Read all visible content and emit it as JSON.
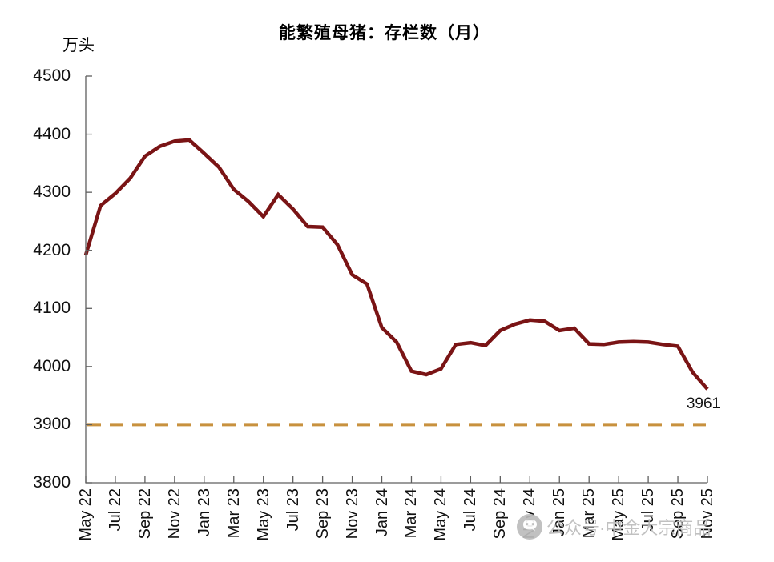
{
  "chart": {
    "title": "能繁殖母猪：存栏数（月）",
    "unit_label": "万头",
    "last_point_label": "3961"
  },
  "watermark": {
    "icon": "wechat-icon",
    "text": "公众号·中金大宗商品"
  },
  "colors": {
    "series_line": "#7A1415",
    "reference_line": "#C8913E",
    "axis": "#5f5f5f",
    "tick_text": "#111111",
    "watermark_text": "#bcbcbc",
    "background": "#ffffff"
  },
  "chart_data": {
    "type": "line",
    "title": "能繁殖母猪：存栏数（月）",
    "ylabel": "万头",
    "grid": false,
    "legend": "none",
    "ylim": [
      3800,
      4500
    ],
    "yticks": [
      3800,
      3900,
      4000,
      4100,
      4200,
      4300,
      4400,
      4500
    ],
    "x": [
      "2022-05",
      "2022-06",
      "2022-07",
      "2022-08",
      "2022-09",
      "2022-10",
      "2022-11",
      "2022-12",
      "2023-01",
      "2023-02",
      "2023-03",
      "2023-04",
      "2023-05",
      "2023-06",
      "2023-07",
      "2023-08",
      "2023-09",
      "2023-10",
      "2023-11",
      "2023-12",
      "2024-01",
      "2024-02",
      "2024-03",
      "2024-04",
      "2024-05",
      "2024-06",
      "2024-07",
      "2024-08",
      "2024-09",
      "2024-10",
      "2024-11",
      "2024-12",
      "2025-01",
      "2025-02",
      "2025-03",
      "2025-04",
      "2025-05",
      "2025-06",
      "2025-07",
      "2025-08",
      "2025-09",
      "2025-10",
      "2025-11"
    ],
    "values": [
      4192,
      4277,
      4298,
      4324,
      4362,
      4379,
      4388,
      4390,
      4367,
      4343,
      4305,
      4284,
      4258,
      4296,
      4271,
      4241,
      4240,
      4210,
      4158,
      4142,
      4067,
      4042,
      3992,
      3986,
      3996,
      4038,
      4041,
      4036,
      4062,
      4073,
      4080,
      4078,
      4062,
      4066,
      4039,
      4038,
      4042,
      4043,
      4042,
      4038,
      4035,
      3990,
      3961
    ],
    "xtick_labels": [
      "May 22",
      "Jul 22",
      "Sep 22",
      "Nov 22",
      "Jan 23",
      "Mar 23",
      "May 23",
      "Jul 23",
      "Sep 23",
      "Nov 23",
      "Jan 24",
      "Mar 24",
      "May 24",
      "Jul 24",
      "Sep 24",
      "Nov 24",
      "Jan 25",
      "Mar 25",
      "May 25",
      "Jul 25",
      "Sep 25",
      "Nov 25"
    ],
    "reference_line": {
      "value": 3900,
      "style": "dashed",
      "color": "#C8913E"
    },
    "series_color": "#7A1415",
    "annotation": {
      "text": "3961",
      "x": "2025-11",
      "y": 3961
    }
  }
}
